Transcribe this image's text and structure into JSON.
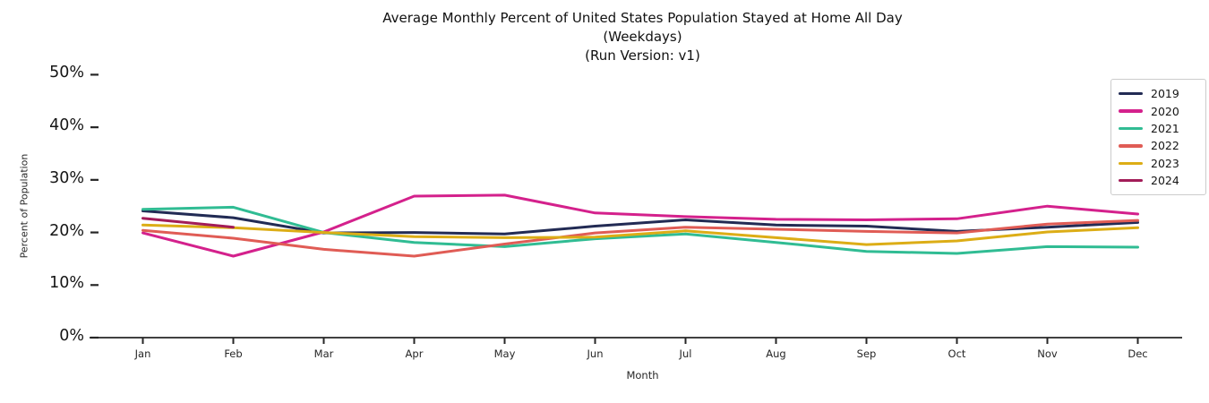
{
  "chart_data": {
    "type": "line",
    "title": "Average Monthly Percent of United States Population Stayed at Home All Day",
    "subtitle": "(Weekdays)",
    "run_version_line": "(Run Version: v1)",
    "xlabel": "Month",
    "ylabel": "Percent of Population",
    "categories": [
      "Jan",
      "Feb",
      "Mar",
      "Apr",
      "May",
      "Jun",
      "Jul",
      "Aug",
      "Sep",
      "Oct",
      "Nov",
      "Dec"
    ],
    "ytick_labels": [
      "0%",
      "10%",
      "20%",
      "30%",
      "40%",
      "50%"
    ],
    "ylim": [
      0,
      52
    ],
    "grid": false,
    "legend_position": "upper right",
    "axis_color": "#262626",
    "series": [
      {
        "name": "2019",
        "color": "#222b54",
        "values": [
          24.1,
          22.8,
          19.9,
          20.0,
          19.7,
          21.2,
          22.4,
          21.4,
          21.2,
          20.2,
          21.0,
          21.9
        ]
      },
      {
        "name": "2020",
        "color": "#d4218c",
        "values": [
          19.9,
          15.5,
          20.1,
          26.9,
          27.1,
          23.7,
          23.0,
          22.5,
          22.4,
          22.6,
          25.0,
          23.5
        ]
      },
      {
        "name": "2021",
        "color": "#30bc93",
        "values": [
          24.4,
          24.8,
          20.0,
          18.1,
          17.3,
          18.8,
          19.7,
          18.1,
          16.4,
          16.0,
          17.3,
          17.2
        ]
      },
      {
        "name": "2022",
        "color": "#e05c55",
        "values": [
          20.4,
          18.9,
          16.8,
          15.5,
          17.8,
          19.9,
          21.0,
          20.6,
          20.2,
          19.9,
          21.6,
          22.3
        ]
      },
      {
        "name": "2023",
        "color": "#dcad16",
        "values": [
          21.4,
          20.9,
          20.0,
          19.2,
          19.0,
          19.1,
          20.3,
          19.0,
          17.7,
          18.4,
          20.1,
          20.9
        ]
      },
      {
        "name": "2024",
        "color": "#a21c58",
        "values": [
          22.7,
          21.0
        ]
      }
    ]
  }
}
